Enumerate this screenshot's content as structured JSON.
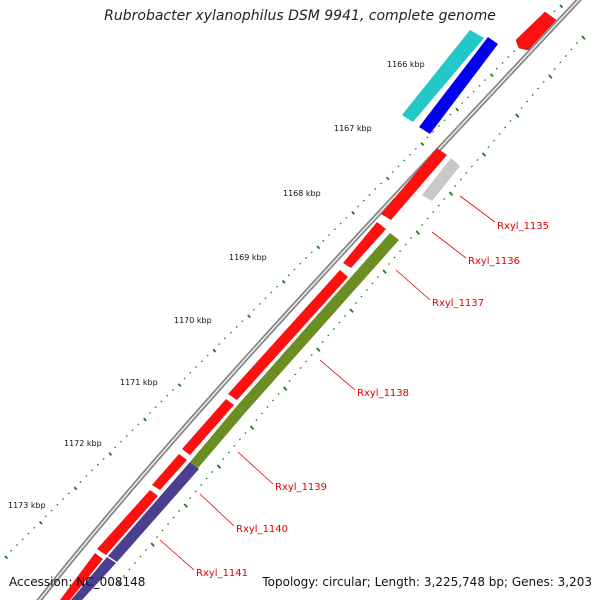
{
  "title": "Rubrobacter xylanophilus DSM 9941, complete genome",
  "accession": "Accession: NC_008148",
  "stats": "Topology: circular; Length: 3,225,748 bp; Genes: 3,203",
  "scale_labels": [
    "1166 kbp",
    "1167 kbp",
    "1168 kbp",
    "1169 kbp",
    "1170 kbp",
    "1171 kbp",
    "1172 kbp",
    "1173 kbp"
  ],
  "gene_labels": [
    "Rxyl_1135",
    "Rxyl_1136",
    "Rxyl_1137",
    "Rxyl_1138",
    "Rxyl_1139",
    "Rxyl_1140",
    "Rxyl_1141"
  ],
  "colors": {
    "forward_cds": "#ff0000",
    "cds_teal": "#22c8c8",
    "cds_blue": "#0000ee",
    "cds_grey": "#c8c8c8",
    "cds_olive": "#6b8e23",
    "cds_purple": "#4b3f8f",
    "backbone": "#808080",
    "ticks": "#1a7a1a"
  }
}
